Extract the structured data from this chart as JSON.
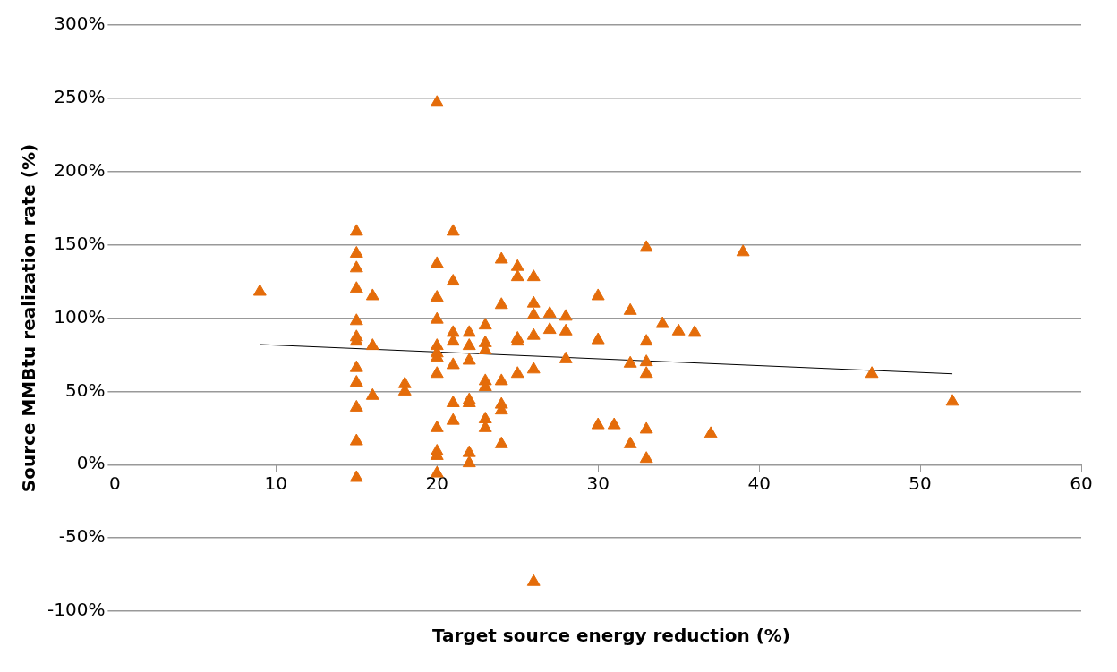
{
  "chart_data": {
    "type": "scatter",
    "xlabel": "Target source energy reduction (%)",
    "ylabel": "Source MMBtu realization rate (%)",
    "xlim": [
      0,
      60
    ],
    "xticks": [
      0,
      10,
      20,
      30,
      40,
      50,
      60
    ],
    "ylim": [
      -100,
      300
    ],
    "yticks": [
      {
        "value": -100,
        "label": "-100%"
      },
      {
        "value": -50,
        "label": "-50%"
      },
      {
        "value": 0,
        "label": "0%"
      },
      {
        "value": 50,
        "label": "50%"
      },
      {
        "value": 100,
        "label": "100%"
      },
      {
        "value": 150,
        "label": "150%"
      },
      {
        "value": 200,
        "label": "200%"
      },
      {
        "value": 250,
        "label": "250%"
      },
      {
        "value": 300,
        "label": "300%"
      }
    ],
    "grid": "y",
    "legend": false,
    "marker": "triangle",
    "series": [
      {
        "color": "#e46c0a",
        "x": [
          9,
          15,
          15,
          15,
          15,
          15,
          15,
          15,
          15,
          15,
          15,
          15,
          15,
          16,
          16,
          16,
          18,
          18,
          20,
          20,
          20,
          20,
          20,
          20,
          20,
          20,
          20,
          20,
          20,
          20,
          21,
          21,
          21,
          21,
          21,
          21,
          21,
          22,
          22,
          22,
          22,
          22,
          22,
          22,
          23,
          23,
          23,
          23,
          23,
          23,
          23,
          24,
          24,
          24,
          24,
          24,
          24,
          25,
          25,
          25,
          25,
          25,
          26,
          26,
          26,
          26,
          26,
          26,
          27,
          27,
          28,
          28,
          28,
          30,
          30,
          30,
          31,
          32,
          32,
          32,
          33,
          33,
          33,
          33,
          33,
          33,
          34,
          35,
          36,
          37,
          39,
          47,
          52
        ],
        "values": [
          118,
          159,
          144,
          134,
          120,
          98,
          87,
          84,
          66,
          56,
          39,
          16,
          -9,
          115,
          81,
          47,
          55,
          50,
          247,
          137,
          114,
          99,
          81,
          76,
          73,
          62,
          25,
          9,
          6,
          -6,
          159,
          125,
          90,
          84,
          68,
          42,
          30,
          90,
          81,
          71,
          44,
          42,
          8,
          1,
          95,
          83,
          78,
          57,
          53,
          31,
          25,
          140,
          109,
          57,
          41,
          37,
          14,
          135,
          128,
          86,
          84,
          62,
          128,
          110,
          102,
          88,
          65,
          -80,
          103,
          92,
          101,
          91,
          72,
          115,
          85,
          27,
          27,
          105,
          69,
          14,
          148,
          84,
          70,
          62,
          24,
          4,
          96,
          91,
          90,
          21,
          145,
          62,
          43
        ]
      },
      {
        "type": "line",
        "color": "#000000",
        "x": [
          9,
          52
        ],
        "values": [
          82,
          62
        ],
        "marker": "none"
      }
    ]
  }
}
